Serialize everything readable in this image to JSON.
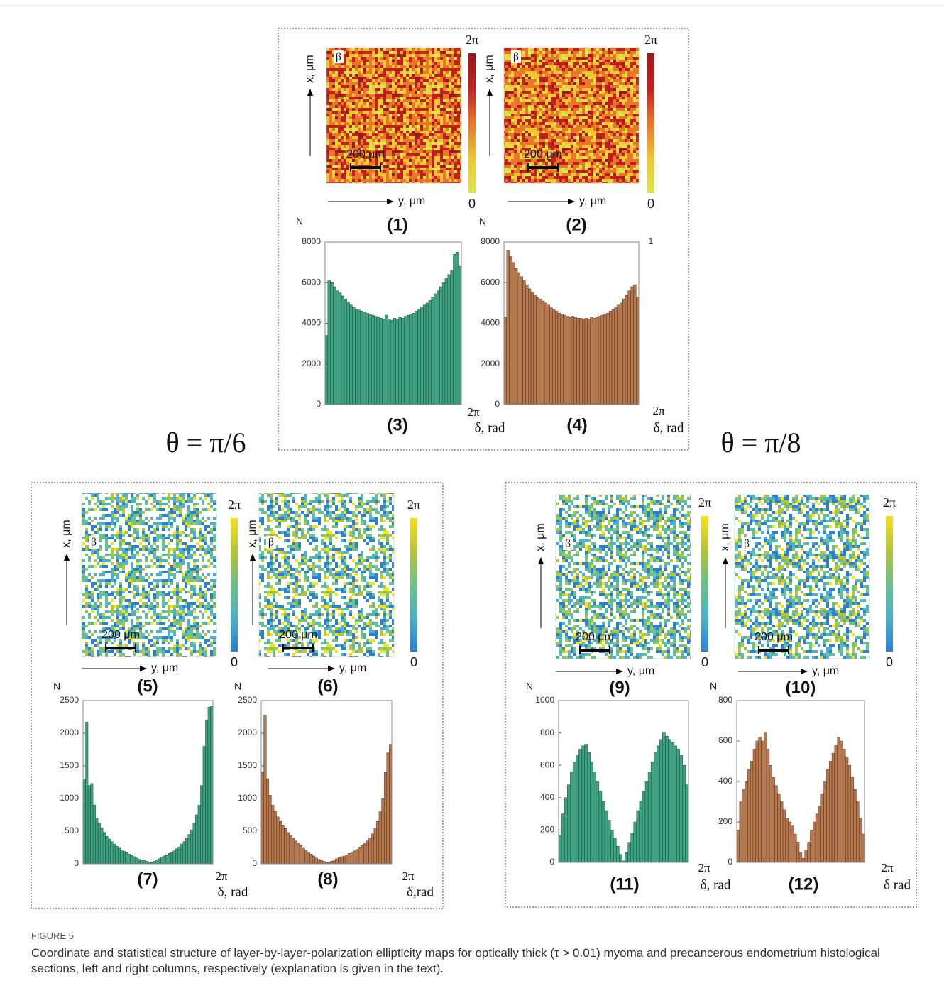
{
  "chart_data": [
    {
      "type": "bar",
      "title": "(3)",
      "ylabel": "N",
      "x_end_label": "2π",
      "xlabel": "δ, rad",
      "color": "#3aa383",
      "ylim": [
        0,
        8000
      ],
      "yticks": [
        0,
        2000,
        4000,
        6000,
        8000
      ],
      "values": [
        3400,
        6100,
        6000,
        5800,
        5600,
        5500,
        5350,
        5200,
        5050,
        4900,
        4800,
        4700,
        4650,
        4600,
        4550,
        4500,
        4450,
        4400,
        4350,
        4300,
        4250,
        4200,
        4400,
        4200,
        4150,
        4250,
        4200,
        4300,
        4250,
        4350,
        4400,
        4450,
        4500,
        4600,
        4700,
        4800,
        4900,
        5000,
        5150,
        5300,
        5450,
        5600,
        5800,
        6000,
        6200,
        6400,
        6600,
        7400,
        7500,
        6800
      ]
    },
    {
      "type": "bar",
      "title": "(4)",
      "ylabel": "N",
      "x_end_label": "2π",
      "xlabel": "δ, rad",
      "annotation": "1",
      "color": "#b8764a",
      "ylim": [
        0,
        8000
      ],
      "yticks": [
        0,
        2000,
        4000,
        6000,
        8000
      ],
      "values": [
        4300,
        7600,
        7300,
        7000,
        6700,
        6500,
        6300,
        6100,
        5900,
        5700,
        5550,
        5400,
        5300,
        5200,
        5100,
        5000,
        4900,
        4800,
        4700,
        4600,
        4500,
        4450,
        4400,
        4350,
        4300,
        4350,
        4300,
        4250,
        4250,
        4200,
        4250,
        4200,
        4300,
        4250,
        4300,
        4350,
        4400,
        4450,
        4500,
        4600,
        4700,
        4800,
        4900,
        5000,
        5200,
        5400,
        5600,
        5800,
        5900,
        5300
      ]
    },
    {
      "type": "bar",
      "title": "(7)",
      "ylabel": "N",
      "x_end_label": "2π",
      "xlabel": "δ, rad",
      "color": "#3aa383",
      "ylim": [
        0,
        2500
      ],
      "yticks": [
        0,
        500,
        1000,
        1500,
        2000,
        2500
      ],
      "values": [
        1300,
        2170,
        1200,
        1230,
        900,
        700,
        620,
        550,
        480,
        420,
        380,
        340,
        300,
        270,
        240,
        210,
        190,
        170,
        150,
        130,
        110,
        90,
        70,
        60,
        50,
        40,
        30,
        20,
        40,
        60,
        80,
        100,
        120,
        140,
        160,
        180,
        200,
        230,
        260,
        300,
        340,
        390,
        450,
        520,
        620,
        750,
        900,
        1200,
        1800,
        2200,
        2400,
        2420
      ]
    },
    {
      "type": "bar",
      "title": "(8)",
      "ylabel": "N",
      "x_end_label": "2π",
      "xlabel": "δ,rad",
      "color": "#b8764a",
      "ylim": [
        0,
        2500
      ],
      "yticks": [
        0,
        500,
        1000,
        1500,
        2000,
        2500
      ],
      "values": [
        1400,
        2280,
        1300,
        1050,
        900,
        800,
        720,
        650,
        590,
        540,
        480,
        430,
        390,
        350,
        310,
        280,
        240,
        210,
        180,
        150,
        120,
        90,
        70,
        50,
        40,
        30,
        20,
        40,
        60,
        80,
        100,
        110,
        120,
        140,
        160,
        180,
        200,
        220,
        250,
        280,
        310,
        350,
        400,
        460,
        540,
        650,
        800,
        1000,
        1400,
        1700,
        1830
      ]
    },
    {
      "type": "bar",
      "title": "(11)",
      "ylabel": "N",
      "x_end_label": "2π",
      "xlabel": "δ, rad",
      "color": "#3aa383",
      "ylim": [
        0,
        1000
      ],
      "yticks": [
        0,
        200,
        400,
        600,
        800,
        1000
      ],
      "values": [
        170,
        300,
        400,
        480,
        560,
        620,
        660,
        700,
        720,
        730,
        680,
        620,
        560,
        500,
        440,
        380,
        320,
        260,
        200,
        150,
        100,
        50,
        10,
        60,
        120,
        180,
        250,
        320,
        380,
        440,
        500,
        560,
        620,
        680,
        720,
        760,
        800,
        780,
        760,
        740,
        720,
        700,
        660,
        600,
        480
      ]
    },
    {
      "type": "bar",
      "title": "(12)",
      "ylabel": "N",
      "x_end_label": "2π",
      "xlabel": "δ rad",
      "color": "#b8764a",
      "ylim": [
        0,
        800
      ],
      "yticks": [
        0,
        200,
        400,
        600,
        800
      ],
      "values": [
        160,
        300,
        360,
        400,
        460,
        500,
        560,
        600,
        620,
        600,
        640,
        560,
        480,
        420,
        380,
        340,
        300,
        260,
        220,
        200,
        180,
        140,
        100,
        50,
        20,
        60,
        100,
        160,
        200,
        240,
        280,
        340,
        400,
        460,
        500,
        540,
        580,
        620,
        600,
        560,
        520,
        480,
        420,
        360,
        300,
        220,
        140
      ]
    }
  ],
  "maps": [
    {
      "label": "(1)",
      "inset": "β",
      "scale_bar": "200 μm",
      "xlabel": "y, μm",
      "ylabel": "x, μm",
      "colorbar_max": "2π",
      "colorbar_min": "0",
      "colormap": [
        "#d8e84a",
        "#f2c531",
        "#e8772a",
        "#c0201e",
        "#9b1a1a"
      ]
    },
    {
      "label": "(2)",
      "inset": "β",
      "scale_bar": "200 μm",
      "xlabel": "y, μm",
      "ylabel": "x, μm",
      "colorbar_max": "2π",
      "colorbar_min": "0",
      "colormap": [
        "#d8e84a",
        "#f2c531",
        "#e8772a",
        "#c0201e",
        "#9b1a1a"
      ]
    },
    {
      "label": "(5)",
      "inset": "β",
      "scale_bar": "200 μm",
      "xlabel": "y, μm",
      "ylabel": "x, μm",
      "colorbar_max": "2π",
      "colorbar_min": "0",
      "colormap": [
        "#2c7fcf",
        "#4bb2c8",
        "#6cc08a",
        "#b6c43a",
        "#f3e11c"
      ]
    },
    {
      "label": "(6)",
      "inset": "β",
      "scale_bar": "200 μm",
      "xlabel": "y, μm",
      "ylabel": "x, μm",
      "colorbar_max": "2π",
      "colorbar_min": "0",
      "colormap": [
        "#2c7fcf",
        "#4bb2c8",
        "#6cc08a",
        "#b6c43a",
        "#f3e11c"
      ]
    },
    {
      "label": "(9)",
      "inset": "β",
      "scale_bar": "200 μm",
      "xlabel": "y, μm",
      "ylabel": "x, μm",
      "colorbar_max": "2π",
      "colorbar_min": "0",
      "colormap": [
        "#2c7fcf",
        "#4bb2c8",
        "#6cc08a",
        "#b6c43a",
        "#f3e11c"
      ]
    },
    {
      "label": "(10)",
      "inset": "β",
      "scale_bar": "200 μm",
      "xlabel": "y, μm",
      "ylabel": "x, μm",
      "colorbar_max": "2π",
      "colorbar_min": "0",
      "colormap": [
        "#2c7fcf",
        "#4bb2c8",
        "#6cc08a",
        "#b6c43a",
        "#f3e11c"
      ]
    }
  ],
  "theta_labels": [
    "θ = π/6",
    "θ = π/8"
  ],
  "caption": {
    "label": "FIGURE 5",
    "text": "Coordinate and statistical structure of layer-by-layer-polarization ellipticity maps for optically thick (τ > 0.01) myoma and precancerous endometrium histological sections, left and right columns, respectively (explanation is given in the text)."
  }
}
